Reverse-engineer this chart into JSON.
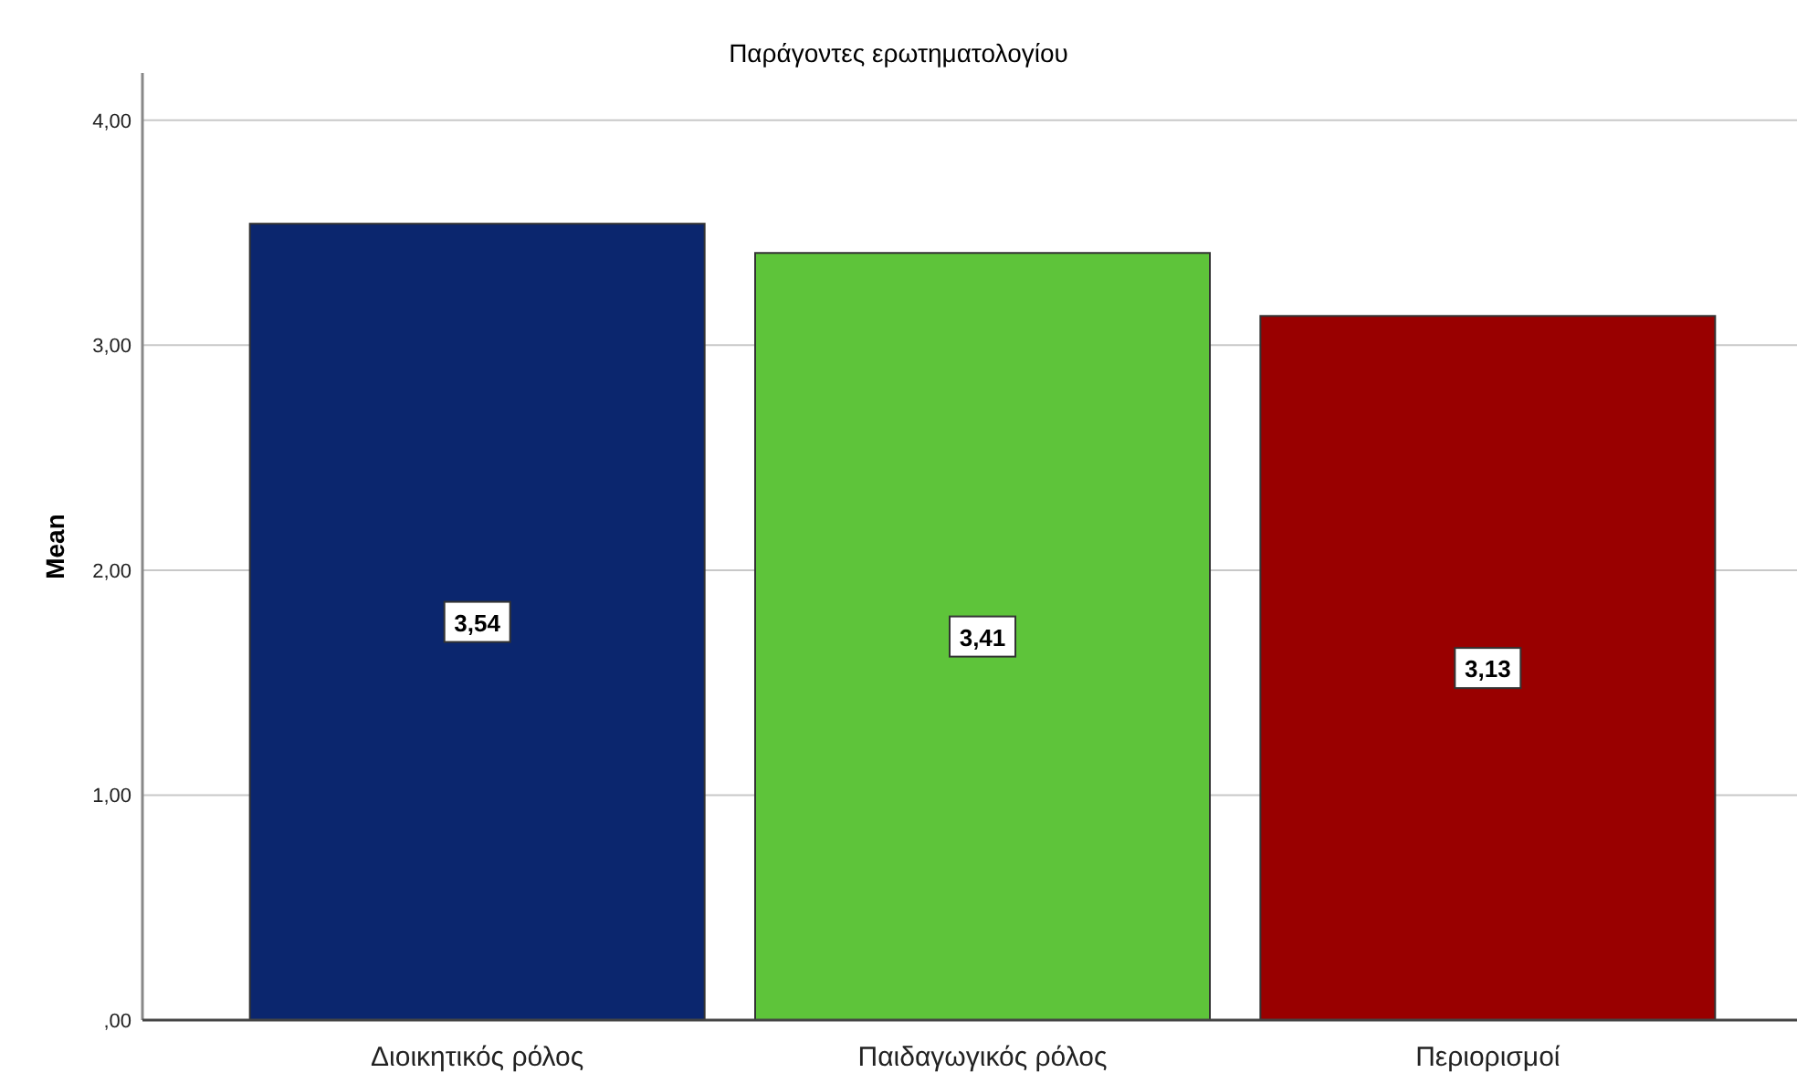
{
  "chart_data": {
    "type": "bar",
    "title": "Παράγοντες ερωτηματολογίου",
    "ylabel": "Mean",
    "categories": [
      "Διοικητικός ρόλος",
      "Παιδαγωγικός ρόλος",
      "Περιορισμοί"
    ],
    "values": [
      3.54,
      3.41,
      3.13
    ],
    "colors": [
      "#0b266e",
      "#5ec43a",
      "#990000"
    ],
    "value_labels": [
      "3,54",
      "3,41",
      "3,13"
    ],
    "ylim": [
      0,
      4.21
    ],
    "yticks": [
      {
        "value": 0,
        "label": ",00"
      },
      {
        "value": 1,
        "label": "1,00"
      },
      {
        "value": 2,
        "label": "2,00"
      },
      {
        "value": 3,
        "label": "3,00"
      },
      {
        "value": 4,
        "label": "4,00"
      }
    ],
    "grid": "y"
  }
}
